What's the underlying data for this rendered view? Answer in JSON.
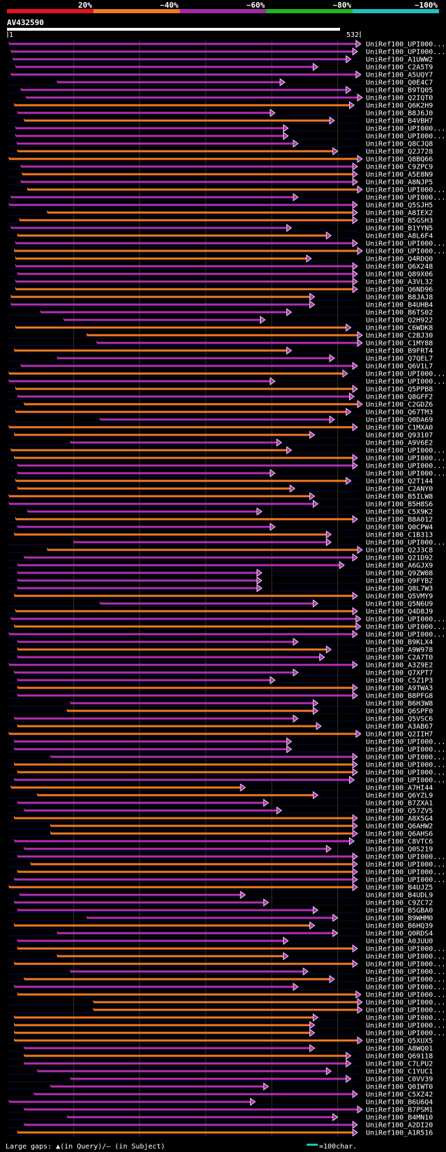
{
  "chart_data": {
    "type": "alignment-overview",
    "title": "AV432590",
    "query_length": 532,
    "axis": {
      "start_label": "1",
      "end_label": "532"
    },
    "identity_legend": [
      {
        "label": "20%",
        "color": "#e8141c"
      },
      {
        "label": "~40%",
        "color": "#f07a20"
      },
      {
        "label": "~60%",
        "color": "#a52aa5"
      },
      {
        "label": "~80%",
        "color": "#22b422"
      },
      {
        "label": "~100%",
        "color": "#20c0c0"
      }
    ],
    "series_colors": {
      "orange": "#f07a20",
      "magenta": "#b030b0"
    },
    "footer": {
      "gaps_text": "Large gaps: ▲(in Query)/— (in Subject)",
      "scale_text": "=100char."
    },
    "hits": [
      {
        "name": "UniRef100_UPI000...",
        "s": 2,
        "e": 535,
        "c": "m"
      },
      {
        "name": "UniRef100_UPI000...",
        "s": 5,
        "e": 530,
        "c": "m"
      },
      {
        "name": "UniRef100_A1UWW2",
        "s": 8,
        "e": 520,
        "c": "m"
      },
      {
        "name": "UniRef100_C2A5T9",
        "s": 12,
        "e": 470,
        "c": "m"
      },
      {
        "name": "UniRef100_A5UQY7",
        "s": 5,
        "e": 535,
        "c": "m"
      },
      {
        "name": "UniRef100_Q0E4C7",
        "s": 75,
        "e": 420,
        "c": "m"
      },
      {
        "name": "UniRef100_B9TQ05",
        "s": 20,
        "e": 520,
        "c": "m"
      },
      {
        "name": "UniRef100_Q2IQT0",
        "s": 28,
        "e": 540,
        "c": "m"
      },
      {
        "name": "UniRef100_Q6K2H9",
        "s": 10,
        "e": 525,
        "c": "o"
      },
      {
        "name": "UniRef100_B8J6J0",
        "s": 15,
        "e": 405,
        "c": "m"
      },
      {
        "name": "UniRef100_B4VBH7",
        "s": 25,
        "e": 495,
        "c": "o"
      },
      {
        "name": "UniRef100_UPI000...",
        "s": 12,
        "e": 425,
        "c": "m"
      },
      {
        "name": "UniRef100_UPI000...",
        "s": 12,
        "e": 425,
        "c": "m"
      },
      {
        "name": "UniRef100_Q8CJQ8",
        "s": 14,
        "e": 440,
        "c": "m"
      },
      {
        "name": "UniRef100_Q2J728",
        "s": 15,
        "e": 500,
        "c": "o"
      },
      {
        "name": "UniRef100_Q8BQ66",
        "s": 2,
        "e": 540,
        "c": "o"
      },
      {
        "name": "UniRef100_C9ZPC9",
        "s": 20,
        "e": 530,
        "c": "m"
      },
      {
        "name": "UniRef100_A5E8N9",
        "s": 22,
        "e": 530,
        "c": "o"
      },
      {
        "name": "UniRef100_A8NJP5",
        "s": 20,
        "e": 530,
        "c": "m"
      },
      {
        "name": "UniRef100_UPI000...",
        "s": 30,
        "e": 555,
        "c": "o"
      },
      {
        "name": "UniRef100_UPI000...",
        "s": 5,
        "e": 440,
        "c": "m"
      },
      {
        "name": "UniRef100_Q5SJH5",
        "s": 2,
        "e": 530,
        "c": "m"
      },
      {
        "name": "UniRef100_A8IEX2",
        "s": 60,
        "e": 530,
        "c": "o"
      },
      {
        "name": "UniRef100_B5GSH3",
        "s": 18,
        "e": 530,
        "c": "o"
      },
      {
        "name": "UniRef100_B1YYN5",
        "s": 5,
        "e": 430,
        "c": "m"
      },
      {
        "name": "UniRef100_A8L6F4",
        "s": 15,
        "e": 490,
        "c": "o"
      },
      {
        "name": "UniRef100_UPI000...",
        "s": 12,
        "e": 530,
        "c": "m"
      },
      {
        "name": "UniRef100_UPI000...",
        "s": 10,
        "e": 555,
        "c": "o"
      },
      {
        "name": "UniRef100_Q4RDQ0",
        "s": 12,
        "e": 460,
        "c": "o"
      },
      {
        "name": "UniRef100_Q6X248",
        "s": 12,
        "e": 530,
        "c": "m"
      },
      {
        "name": "UniRef100_Q89X06",
        "s": 15,
        "e": 530,
        "c": "m"
      },
      {
        "name": "UniRef100_A3VL32",
        "s": 12,
        "e": 530,
        "c": "m"
      },
      {
        "name": "UniRef100_Q6ND96",
        "s": 12,
        "e": 530,
        "c": "o"
      },
      {
        "name": "UniRef100_B8JAJ8",
        "s": 5,
        "e": 465,
        "c": "o"
      },
      {
        "name": "UniRef100_B4UHB4",
        "s": 5,
        "e": 465,
        "c": "m"
      },
      {
        "name": "UniRef100_B6TS02",
        "s": 50,
        "e": 430,
        "c": "m"
      },
      {
        "name": "UniRef100_Q2H922",
        "s": 85,
        "e": 390,
        "c": "m"
      },
      {
        "name": "UniRef100_C6WDK8",
        "s": 12,
        "e": 520,
        "c": "o"
      },
      {
        "name": "UniRef100_C2BJ30",
        "s": 120,
        "e": 555,
        "c": "o"
      },
      {
        "name": "UniRef100_C1MY88",
        "s": 135,
        "e": 555,
        "c": "m"
      },
      {
        "name": "UniRef100_B9FRT4",
        "s": 10,
        "e": 430,
        "c": "o"
      },
      {
        "name": "UniRef100_Q7QEL7",
        "s": 75,
        "e": 495,
        "c": "m"
      },
      {
        "name": "UniRef100_Q6V1L7",
        "s": 20,
        "e": 530,
        "c": "m"
      },
      {
        "name": "UniRef100_UPI000...",
        "s": 2,
        "e": 515,
        "c": "o"
      },
      {
        "name": "UniRef100_UPI000...",
        "s": 2,
        "e": 405,
        "c": "m"
      },
      {
        "name": "UniRef100_Q5PPB8",
        "s": 12,
        "e": 530,
        "c": "o"
      },
      {
        "name": "UniRef100_Q8GFF2",
        "s": 15,
        "e": 525,
        "c": "m"
      },
      {
        "name": "UniRef100_C2GDZ6",
        "s": 25,
        "e": 560,
        "c": "o"
      },
      {
        "name": "UniRef100_Q67TM3",
        "s": 12,
        "e": 520,
        "c": "o"
      },
      {
        "name": "UniRef100_Q0DA69",
        "s": 140,
        "e": 495,
        "c": "m"
      },
      {
        "name": "UniRef100_C1MXA0",
        "s": 2,
        "e": 530,
        "c": "o"
      },
      {
        "name": "UniRef100_Q93107",
        "s": 10,
        "e": 465,
        "c": "o"
      },
      {
        "name": "UniRef100_A9V6E2",
        "s": 95,
        "e": 415,
        "c": "m"
      },
      {
        "name": "UniRef100_UPI000...",
        "s": 5,
        "e": 430,
        "c": "o"
      },
      {
        "name": "UniRef100_UPI000...",
        "s": 10,
        "e": 530,
        "c": "o"
      },
      {
        "name": "UniRef100_UPI000...",
        "s": 15,
        "e": 530,
        "c": "m"
      },
      {
        "name": "UniRef100_UPI000...",
        "s": 15,
        "e": 405,
        "c": "m"
      },
      {
        "name": "UniRef100_Q2T144",
        "s": 12,
        "e": 520,
        "c": "o"
      },
      {
        "name": "UniRef100_C2ANY0",
        "s": 15,
        "e": 435,
        "c": "o"
      },
      {
        "name": "UniRef100_B5ILW8",
        "s": 2,
        "e": 465,
        "c": "o"
      },
      {
        "name": "UniRef100_B5H8S6",
        "s": 2,
        "e": 470,
        "c": "m"
      },
      {
        "name": "UniRef100_C5X9K2",
        "s": 30,
        "e": 385,
        "c": "m"
      },
      {
        "name": "UniRef100_B8A012",
        "s": 12,
        "e": 530,
        "c": "o"
      },
      {
        "name": "UniRef100_Q0CPW4",
        "s": 15,
        "e": 405,
        "c": "m"
      },
      {
        "name": "UniRef100_C1B313",
        "s": 10,
        "e": 490,
        "c": "o"
      },
      {
        "name": "UniRef100_UPI000...",
        "s": 100,
        "e": 490,
        "c": "m"
      },
      {
        "name": "UniRef100_Q2J3C8",
        "s": 60,
        "e": 550,
        "c": "o"
      },
      {
        "name": "UniRef100_Q21D92",
        "s": 25,
        "e": 530,
        "c": "m"
      },
      {
        "name": "UniRef100_A6GJX9",
        "s": 15,
        "e": 510,
        "c": "m"
      },
      {
        "name": "UniRef100_Q9ZW08",
        "s": 15,
        "e": 385,
        "c": "m"
      },
      {
        "name": "UniRef100_Q9FYB2",
        "s": 15,
        "e": 385,
        "c": "m"
      },
      {
        "name": "UniRef100_Q8L7W3",
        "s": 15,
        "e": 385,
        "c": "m"
      },
      {
        "name": "UniRef100_Q5VMY9",
        "s": 10,
        "e": 530,
        "c": "o"
      },
      {
        "name": "UniRef100_Q5N6U9",
        "s": 140,
        "e": 470,
        "c": "m"
      },
      {
        "name": "UniRef100_Q4D8J9",
        "s": 12,
        "e": 530,
        "c": "o"
      },
      {
        "name": "UniRef100_UPI000...",
        "s": 5,
        "e": 535,
        "c": "m"
      },
      {
        "name": "UniRef100_UPI000...",
        "s": 10,
        "e": 535,
        "c": "o"
      },
      {
        "name": "UniRef100_UPI000...",
        "s": 2,
        "e": 530,
        "c": "m"
      },
      {
        "name": "UniRef100_B9KLX4",
        "s": 15,
        "e": 440,
        "c": "m"
      },
      {
        "name": "UniRef100_A9W978",
        "s": 15,
        "e": 490,
        "c": "o"
      },
      {
        "name": "UniRef100_C2A7T0",
        "s": 15,
        "e": 480,
        "c": "m"
      },
      {
        "name": "UniRef100_A3Z9E2",
        "s": 2,
        "e": 530,
        "c": "m"
      },
      {
        "name": "UniRef100_Q7XPT7",
        "s": 10,
        "e": 440,
        "c": "m"
      },
      {
        "name": "UniRef100_C5Z1P3",
        "s": 15,
        "e": 405,
        "c": "m"
      },
      {
        "name": "UniRef100_A9TWA3",
        "s": 15,
        "e": 530,
        "c": "o"
      },
      {
        "name": "UniRef100_B8PFG8",
        "s": 15,
        "e": 530,
        "c": "m"
      },
      {
        "name": "UniRef100_B6H3W8",
        "s": 95,
        "e": 470,
        "c": "m"
      },
      {
        "name": "UniRef100_Q6SPF0",
        "s": 90,
        "e": 470,
        "c": "o"
      },
      {
        "name": "UniRef100_Q5VSC6",
        "s": 10,
        "e": 440,
        "c": "m"
      },
      {
        "name": "UniRef100_A3AB67",
        "s": 15,
        "e": 475,
        "c": "o"
      },
      {
        "name": "UniRef100_Q2IIH7",
        "s": 2,
        "e": 535,
        "c": "o"
      },
      {
        "name": "UniRef100_UPI000...",
        "s": 10,
        "e": 430,
        "c": "m"
      },
      {
        "name": "UniRef100_UPI000...",
        "s": 10,
        "e": 430,
        "c": "m"
      },
      {
        "name": "UniRef100_UPI000...",
        "s": 65,
        "e": 530,
        "c": "m"
      },
      {
        "name": "UniRef100_UPI000...",
        "s": 10,
        "e": 530,
        "c": "o"
      },
      {
        "name": "UniRef100_UPI000...",
        "s": 15,
        "e": 530,
        "c": "o"
      },
      {
        "name": "UniRef100_UPI000...",
        "s": 10,
        "e": 525,
        "c": "m"
      },
      {
        "name": "UniRef100_A7HI44",
        "s": 5,
        "e": 360,
        "c": "o"
      },
      {
        "name": "UniRef100_Q6YZL9",
        "s": 45,
        "e": 470,
        "c": "o"
      },
      {
        "name": "UniRef100_B7ZXA1",
        "s": 15,
        "e": 395,
        "c": "m"
      },
      {
        "name": "UniRef100_Q57ZV5",
        "s": 25,
        "e": 415,
        "c": "m"
      },
      {
        "name": "UniRef100_A8X5G4",
        "s": 10,
        "e": 530,
        "c": "o"
      },
      {
        "name": "UniRef100_Q6AHW2",
        "s": 65,
        "e": 530,
        "c": "o"
      },
      {
        "name": "UniRef100_Q6AHS6",
        "s": 65,
        "e": 530,
        "c": "o"
      },
      {
        "name": "UniRef100_C8VTC6",
        "s": 10,
        "e": 525,
        "c": "m"
      },
      {
        "name": "UniRef100_Q0S219",
        "s": 25,
        "e": 490,
        "c": "m"
      },
      {
        "name": "UniRef100_UPI000...",
        "s": 15,
        "e": 530,
        "c": "m"
      },
      {
        "name": "UniRef100_UPI000...",
        "s": 35,
        "e": 530,
        "c": "o"
      },
      {
        "name": "UniRef100_UPI000...",
        "s": 15,
        "e": 530,
        "c": "o"
      },
      {
        "name": "UniRef100_UPI000...",
        "s": 10,
        "e": 530,
        "c": "m"
      },
      {
        "name": "UniRef100_B4UJZ5",
        "s": 2,
        "e": 530,
        "c": "o"
      },
      {
        "name": "UniRef100_B4UDL9",
        "s": 18,
        "e": 360,
        "c": "m"
      },
      {
        "name": "UniRef100_C9ZC72",
        "s": 10,
        "e": 395,
        "c": "m"
      },
      {
        "name": "UniRef100_B5GBA0",
        "s": 15,
        "e": 470,
        "c": "m"
      },
      {
        "name": "UniRef100_B9WHM0",
        "s": 120,
        "e": 500,
        "c": "m"
      },
      {
        "name": "UniRef100_B6HQ39",
        "s": 10,
        "e": 465,
        "c": "o"
      },
      {
        "name": "UniRef100_Q0RDS4",
        "s": 75,
        "e": 500,
        "c": "m"
      },
      {
        "name": "UniRef100_A0JUU0",
        "s": 15,
        "e": 425,
        "c": "m"
      },
      {
        "name": "UniRef100_UPI000...",
        "s": 15,
        "e": 530,
        "c": "o"
      },
      {
        "name": "UniRef100_UPI000...",
        "s": 75,
        "e": 425,
        "c": "o"
      },
      {
        "name": "UniRef100_UPI000...",
        "s": 10,
        "e": 530,
        "c": "o"
      },
      {
        "name": "UniRef100_UPI000...",
        "s": 95,
        "e": 455,
        "c": "m"
      },
      {
        "name": "UniRef100_UPI000...",
        "s": 25,
        "e": 495,
        "c": "o"
      },
      {
        "name": "UniRef100_UPI000...",
        "s": 10,
        "e": 440,
        "c": "m"
      },
      {
        "name": "UniRef100_UPI000...",
        "s": 15,
        "e": 535,
        "c": "o"
      },
      {
        "name": "UniRef100_UPI000...",
        "s": 130,
        "e": 550,
        "c": "o"
      },
      {
        "name": "UniRef100_UPI000...",
        "s": 130,
        "e": 550,
        "c": "o"
      },
      {
        "name": "UniRef100_UPI000...",
        "s": 10,
        "e": 470,
        "c": "o"
      },
      {
        "name": "UniRef100_UPI000...",
        "s": 10,
        "e": 465,
        "c": "o"
      },
      {
        "name": "UniRef100_UPI000...",
        "s": 10,
        "e": 465,
        "c": "o"
      },
      {
        "name": "UniRef100_Q5XUX5",
        "s": 10,
        "e": 550,
        "c": "o"
      },
      {
        "name": "UniRef100_A8WQ01",
        "s": 25,
        "e": 465,
        "c": "m"
      },
      {
        "name": "UniRef100_Q69118",
        "s": 25,
        "e": 520,
        "c": "o"
      },
      {
        "name": "UniRef100_C7LPU2",
        "s": 25,
        "e": 520,
        "c": "m"
      },
      {
        "name": "UniRef100_C1YUC1",
        "s": 45,
        "e": 490,
        "c": "m"
      },
      {
        "name": "UniRef100_C0VV39",
        "s": 95,
        "e": 520,
        "c": "m"
      },
      {
        "name": "UniRef100_Q0IWT0",
        "s": 65,
        "e": 395,
        "c": "m"
      },
      {
        "name": "UniRef100_C5XZ42",
        "s": 40,
        "e": 530,
        "c": "m"
      },
      {
        "name": "UniRef100_B6U6Q4",
        "s": 2,
        "e": 375,
        "c": "m"
      },
      {
        "name": "UniRef100_B7PSM1",
        "s": 25,
        "e": 550,
        "c": "m"
      },
      {
        "name": "UniRef100_B4MN10",
        "s": 90,
        "e": 500,
        "c": "m"
      },
      {
        "name": "UniRef100_A2DI20",
        "s": 25,
        "e": 530,
        "c": "m"
      },
      {
        "name": "UniRef100_A1R516",
        "s": 15,
        "e": 530,
        "c": "o"
      }
    ]
  }
}
